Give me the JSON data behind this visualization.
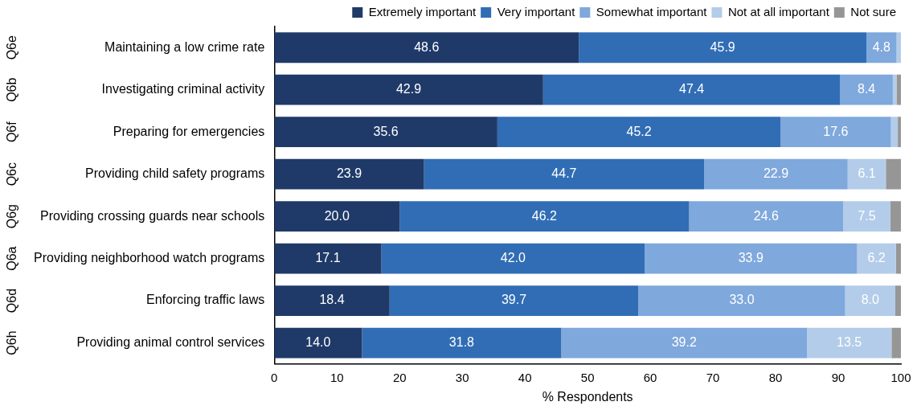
{
  "chart_data": {
    "type": "bar",
    "orientation": "horizontal",
    "stacked": true,
    "xlabel": "% Respondents",
    "legend": "top",
    "grid": false,
    "categories": [
      "Maintaining a low crime rate",
      "Investigating criminal activity",
      "Preparing for emergencies",
      "Providing child safety programs",
      "Providing crossing guards near schools",
      "Providing neighborhood watch programs",
      "Enforcing traffic laws",
      "Providing animal control services"
    ],
    "xlim": [
      0,
      100
    ],
    "xticks": [
      0,
      10,
      20,
      30,
      40,
      50,
      60,
      70,
      80,
      90,
      100
    ],
    "series": [
      {
        "name": "Extremely important",
        "color": "#1f3a68",
        "values": [
          48.6,
          42.9,
          35.6,
          23.9,
          20.0,
          17.1,
          18.4,
          14.0
        ],
        "value_labels": [
          "48.6",
          "42.9",
          "35.6",
          "23.9",
          "20.0",
          "17.1",
          "18.4",
          "14.0"
        ]
      },
      {
        "name": "Very important",
        "color": "#316db5",
        "values": [
          45.9,
          47.4,
          45.2,
          44.7,
          46.2,
          42.0,
          39.7,
          31.8
        ],
        "value_labels": [
          "45.9",
          "47.4",
          "45.2",
          "44.7",
          "46.2",
          "42.0",
          "39.7",
          "31.8"
        ]
      },
      {
        "name": "Somewhat important",
        "color": "#7fa8dc",
        "values": [
          4.8,
          8.4,
          17.6,
          22.9,
          24.6,
          33.9,
          33.0,
          39.2
        ],
        "value_labels": [
          "4.8",
          "8.4",
          "17.6",
          "22.9",
          "24.6",
          "33.9",
          "33.0",
          "39.2"
        ]
      },
      {
        "name": "Not at all important",
        "color": "#b3cce9",
        "values": [
          0.7,
          0.6,
          1.1,
          6.1,
          7.5,
          6.2,
          8.0,
          13.5
        ],
        "value_labels": [
          null,
          null,
          null,
          "6.1",
          "7.5",
          "6.2",
          "8.0",
          "13.5"
        ]
      },
      {
        "name": "Not sure",
        "color": "#969696",
        "values": [
          0,
          0.7,
          0.5,
          2.4,
          1.7,
          0.8,
          0.9,
          1.5
        ],
        "value_labels": [
          null,
          null,
          null,
          null,
          null,
          null,
          null,
          null
        ]
      }
    ],
    "annotations": [
      "Q6e",
      "Q6b",
      "Q6f",
      "Q6c",
      "Q6g",
      "Q6a",
      "Q6d",
      "Q6h"
    ]
  }
}
